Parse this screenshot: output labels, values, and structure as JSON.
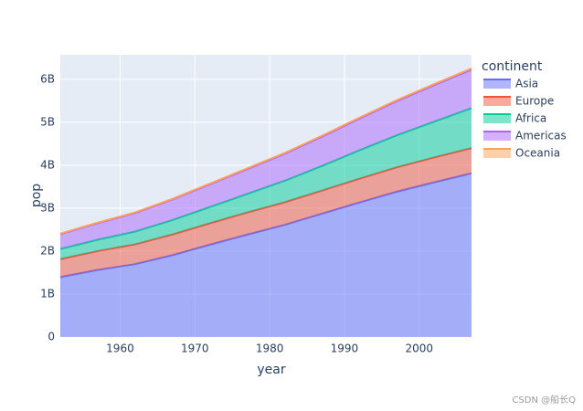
{
  "chart_data": {
    "type": "area",
    "x_label": "year",
    "y_label": "pop",
    "legend_title": "continent",
    "watermark": "CSDN @船长Q",
    "x": [
      1952,
      1957,
      1962,
      1967,
      1972,
      1977,
      1982,
      1987,
      1992,
      1997,
      2002,
      2007
    ],
    "series": [
      {
        "name": "Asia",
        "color": "#636efa",
        "values": [
          1395000000,
          1562000000,
          1697000000,
          1906000000,
          2150000000,
          2384000000,
          2611000000,
          2871000000,
          3133000000,
          3383000000,
          3601000000,
          3812000000
        ]
      },
      {
        "name": "Europe",
        "color": "#EF553B",
        "values": [
          418000000,
          438000000,
          460000000,
          481000000,
          497000000,
          514000000,
          525000000,
          537000000,
          553000000,
          568000000,
          579000000,
          586000000
        ]
      },
      {
        "name": "Africa",
        "color": "#00cc96",
        "values": [
          237000000,
          265000000,
          297000000,
          336000000,
          379000000,
          433000000,
          500000000,
          575000000,
          660000000,
          744000000,
          834000000,
          930000000
        ]
      },
      {
        "name": "Americas",
        "color": "#ab63fa",
        "values": [
          345000000,
          387000000,
          433000000,
          480000000,
          529000000,
          578000000,
          630000000,
          683000000,
          739000000,
          797000000,
          849000000,
          899000000
        ]
      },
      {
        "name": "Oceania",
        "color": "#FFA15A",
        "values": [
          10700000,
          11900000,
          13100000,
          14600000,
          16200000,
          17300000,
          18400000,
          19700000,
          21300000,
          23200000,
          24500000,
          24500000
        ]
      }
    ],
    "xlim": [
      1952,
      2007
    ],
    "xticks": [
      1960,
      1970,
      1980,
      1990,
      2000
    ],
    "ylim": [
      0,
      6570000000
    ],
    "yticks": [
      {
        "value": 0,
        "label": "0"
      },
      {
        "value": 1000000000,
        "label": "1B"
      },
      {
        "value": 2000000000,
        "label": "2B"
      },
      {
        "value": 3000000000,
        "label": "3B"
      },
      {
        "value": 4000000000,
        "label": "4B"
      },
      {
        "value": 5000000000,
        "label": "5B"
      },
      {
        "value": 6000000000,
        "label": "6B"
      }
    ],
    "grid": true,
    "stacked": true,
    "legend_position": "right"
  }
}
